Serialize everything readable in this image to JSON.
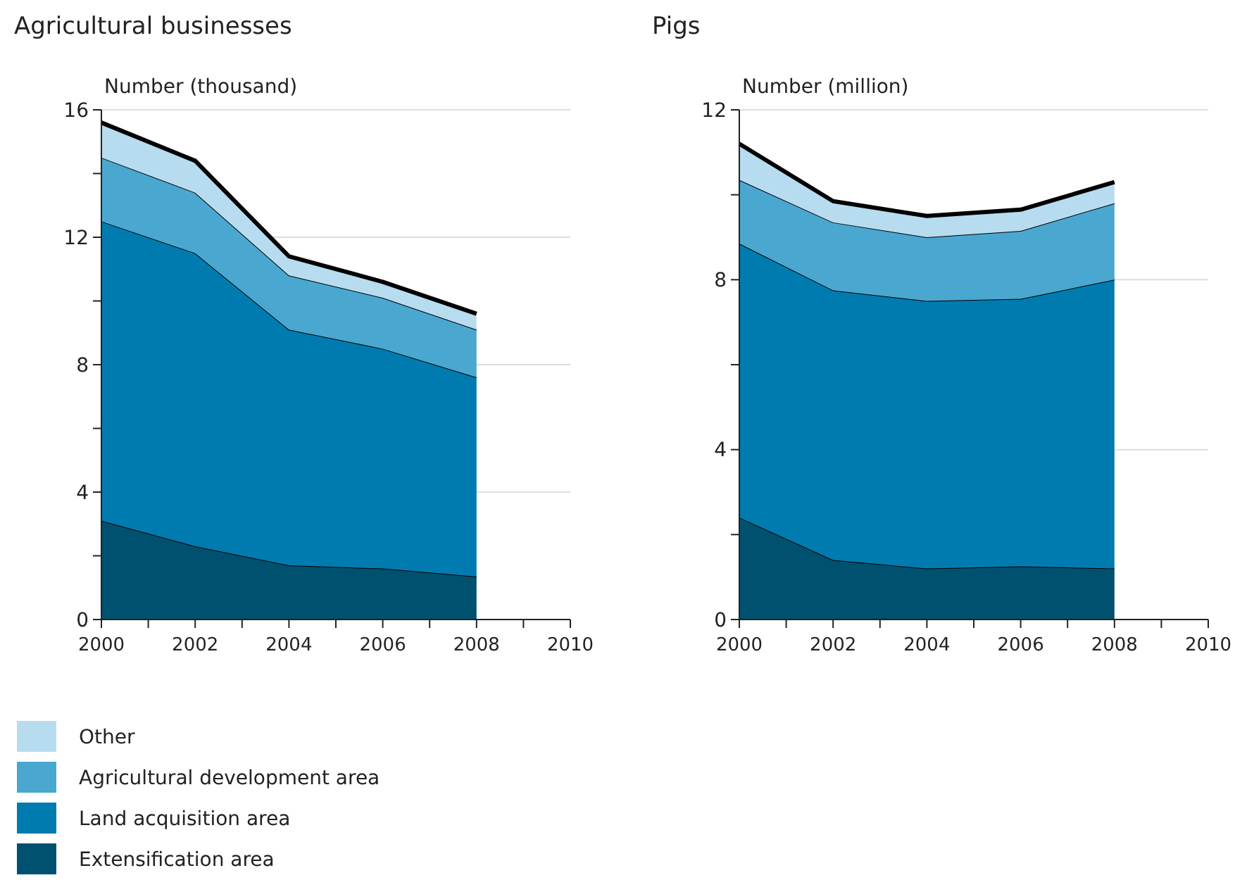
{
  "chart_data": [
    {
      "type": "area",
      "stacked": true,
      "title": "Agricultural businesses",
      "ylabel": "Number (thousand)",
      "x": [
        2000,
        2002,
        2004,
        2006,
        2008
      ],
      "xlim": [
        2000,
        2010
      ],
      "xticks": [
        2000,
        {
          "value": 2001,
          "label": null
        },
        2002,
        {
          "value": 2003,
          "label": null
        },
        2004,
        {
          "value": 2005,
          "label": null
        },
        2006,
        {
          "value": 2007,
          "label": null
        },
        2008,
        {
          "value": 2009,
          "label": null
        },
        2010
      ],
      "ylim": [
        0,
        16
      ],
      "yticks": [
        0,
        {
          "value": 2,
          "label": null
        },
        4,
        {
          "value": 6,
          "label": null
        },
        8,
        {
          "value": 10,
          "label": null
        },
        12,
        {
          "value": 14,
          "label": null
        },
        16
      ],
      "grid": "y",
      "legend": "bottom",
      "series": [
        {
          "name": "Extensification area",
          "color": "#00506f",
          "values": [
            3.1,
            2.3,
            1.7,
            1.6,
            1.35
          ]
        },
        {
          "name": "Land acquisition area",
          "color": "#007bb0",
          "values": [
            9.4,
            9.2,
            7.4,
            6.9,
            6.25
          ]
        },
        {
          "name": "Agricultural development area",
          "color": "#4aa8d0",
          "values": [
            2.0,
            1.9,
            1.7,
            1.6,
            1.5
          ]
        },
        {
          "name": "Other",
          "color": "#b8dcef",
          "values": [
            1.1,
            1.0,
            0.6,
            0.5,
            0.5
          ]
        }
      ]
    },
    {
      "type": "area",
      "stacked": true,
      "title": "Pigs",
      "ylabel": "Number (million)",
      "x": [
        2000,
        2002,
        2004,
        2006,
        2008
      ],
      "xlim": [
        2000,
        2010
      ],
      "xticks": [
        2000,
        {
          "value": 2001,
          "label": null
        },
        2002,
        {
          "value": 2003,
          "label": null
        },
        2004,
        {
          "value": 2005,
          "label": null
        },
        2006,
        {
          "value": 2007,
          "label": null
        },
        2008,
        {
          "value": 2009,
          "label": null
        },
        2010
      ],
      "ylim": [
        0,
        12
      ],
      "yticks": [
        0,
        {
          "value": 2,
          "label": null
        },
        4,
        {
          "value": 6,
          "label": null
        },
        8,
        {
          "value": 10,
          "label": null
        },
        12
      ],
      "grid": "y",
      "series": [
        {
          "color": "#00506f",
          "values": [
            2.4,
            1.4,
            1.2,
            1.25,
            1.2
          ]
        },
        {
          "color": "#007bb0",
          "values": [
            6.45,
            6.35,
            6.3,
            6.3,
            6.8
          ]
        },
        {
          "color": "#4aa8d0",
          "values": [
            1.5,
            1.6,
            1.5,
            1.6,
            1.8
          ]
        },
        {
          "color": "#b8dcef",
          "values": [
            0.85,
            0.5,
            0.5,
            0.5,
            0.5
          ]
        }
      ]
    }
  ]
}
